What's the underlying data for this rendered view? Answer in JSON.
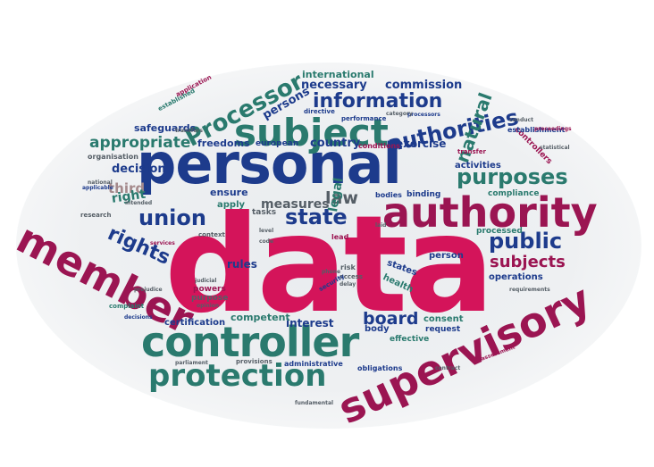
{
  "colors": {
    "navy": "#1d3b8c",
    "teal": "#2a7a6e",
    "magenta": "#d4145a",
    "maroon": "#9b1552",
    "grey": "#555e66",
    "mauve": "#a58a8c"
  },
  "words": [
    {
      "text": "data",
      "color": "magenta"
    },
    {
      "text": "personal",
      "color": "navy"
    },
    {
      "text": "controller",
      "color": "teal"
    },
    {
      "text": "supervisory",
      "color": "maroon"
    },
    {
      "text": "member",
      "color": "maroon"
    },
    {
      "text": "authority",
      "color": "maroon"
    },
    {
      "text": "subject",
      "color": "teal"
    },
    {
      "text": "protection",
      "color": "teal"
    },
    {
      "text": "Processor",
      "color": "teal"
    },
    {
      "text": "authorities",
      "color": "navy"
    },
    {
      "text": "information",
      "color": "navy"
    },
    {
      "text": "purposes",
      "color": "teal"
    },
    {
      "text": "union",
      "color": "navy"
    },
    {
      "text": "state",
      "color": "navy"
    },
    {
      "text": "public",
      "color": "navy"
    },
    {
      "text": "rights",
      "color": "navy"
    },
    {
      "text": "natural",
      "color": "teal"
    },
    {
      "text": "subjects",
      "color": "maroon"
    },
    {
      "text": "appropriate",
      "color": "teal"
    },
    {
      "text": "law",
      "color": "grey"
    },
    {
      "text": "board",
      "color": "navy"
    },
    {
      "text": "necessary",
      "color": "navy"
    },
    {
      "text": "commission",
      "color": "navy"
    },
    {
      "text": "international",
      "color": "teal"
    },
    {
      "text": "persons",
      "color": "navy"
    },
    {
      "text": "measures",
      "color": "grey"
    },
    {
      "text": "decision",
      "color": "navy"
    },
    {
      "text": "third",
      "color": "mauve"
    },
    {
      "text": "right",
      "color": "teal"
    },
    {
      "text": "legal",
      "color": "teal"
    },
    {
      "text": "country",
      "color": "navy"
    },
    {
      "text": "exercise",
      "color": "navy"
    },
    {
      "text": "freedoms",
      "color": "navy"
    },
    {
      "text": "safeguards",
      "color": "navy"
    },
    {
      "text": "interest",
      "color": "navy"
    },
    {
      "text": "competent",
      "color": "teal"
    },
    {
      "text": "certification",
      "color": "navy"
    },
    {
      "text": "consent",
      "color": "teal"
    },
    {
      "text": "person",
      "color": "navy"
    },
    {
      "text": "processed",
      "color": "teal"
    },
    {
      "text": "operations",
      "color": "navy"
    },
    {
      "text": "compliance",
      "color": "teal"
    },
    {
      "text": "binding",
      "color": "navy"
    },
    {
      "text": "activities",
      "color": "navy"
    },
    {
      "text": "controllers",
      "color": "maroon"
    },
    {
      "text": "establishment",
      "color": "navy"
    },
    {
      "text": "rules",
      "color": "navy"
    },
    {
      "text": "apply",
      "color": "teal"
    },
    {
      "text": "ensure",
      "color": "navy"
    },
    {
      "text": "tasks",
      "color": "grey"
    },
    {
      "text": "european",
      "color": "navy"
    },
    {
      "text": "conditions",
      "color": "maroon"
    },
    {
      "text": "health",
      "color": "teal"
    },
    {
      "text": "states",
      "color": "navy"
    },
    {
      "text": "request",
      "color": "navy"
    },
    {
      "text": "effective",
      "color": "teal"
    },
    {
      "text": "administrative",
      "color": "navy"
    },
    {
      "text": "obligations",
      "color": "navy"
    },
    {
      "text": "provisions",
      "color": "grey"
    },
    {
      "text": "body",
      "color": "navy"
    },
    {
      "text": "purpose",
      "color": "grey"
    },
    {
      "text": "powers",
      "color": "maroon"
    },
    {
      "text": "organisation",
      "color": "grey"
    },
    {
      "text": "research",
      "color": "grey"
    },
    {
      "text": "context",
      "color": "grey"
    },
    {
      "text": "bodies",
      "color": "navy"
    },
    {
      "text": "risk",
      "color": "grey"
    },
    {
      "text": "access",
      "color": "grey"
    },
    {
      "text": "lead",
      "color": "maroon"
    },
    {
      "text": "complaint",
      "color": "teal"
    },
    {
      "text": "decisions",
      "color": "navy"
    },
    {
      "text": "transfer",
      "color": "maroon"
    },
    {
      "text": "performance",
      "color": "navy"
    },
    {
      "text": "directive",
      "color": "navy"
    },
    {
      "text": "processors",
      "color": "navy"
    },
    {
      "text": "category",
      "color": "grey"
    },
    {
      "text": "security",
      "color": "navy"
    },
    {
      "text": "applicable",
      "color": "navy"
    },
    {
      "text": "contract",
      "color": "grey"
    },
    {
      "text": "judicial",
      "color": "grey"
    },
    {
      "text": "opinion",
      "color": "grey"
    },
    {
      "text": "fundamental",
      "color": "grey"
    },
    {
      "text": "statistical",
      "color": "grey"
    },
    {
      "text": "proceedings",
      "color": "maroon"
    },
    {
      "text": "requirements",
      "color": "grey"
    },
    {
      "text": "conduct",
      "color": "grey"
    },
    {
      "text": "national",
      "color": "grey"
    },
    {
      "text": "intended",
      "color": "grey"
    },
    {
      "text": "services",
      "color": "maroon"
    },
    {
      "text": "parliament",
      "color": "grey"
    },
    {
      "text": "assessment",
      "color": "maroon"
    },
    {
      "text": "transfers",
      "color": "grey"
    },
    {
      "text": "delay",
      "color": "grey"
    },
    {
      "text": "application",
      "color": "maroon"
    },
    {
      "text": "established",
      "color": "teal"
    },
    {
      "text": "laid",
      "color": "grey"
    },
    {
      "text": "code",
      "color": "grey"
    },
    {
      "text": "level",
      "color": "grey"
    },
    {
      "text": "phone",
      "color": "grey"
    },
    {
      "text": "prejudice",
      "color": "grey"
    }
  ]
}
